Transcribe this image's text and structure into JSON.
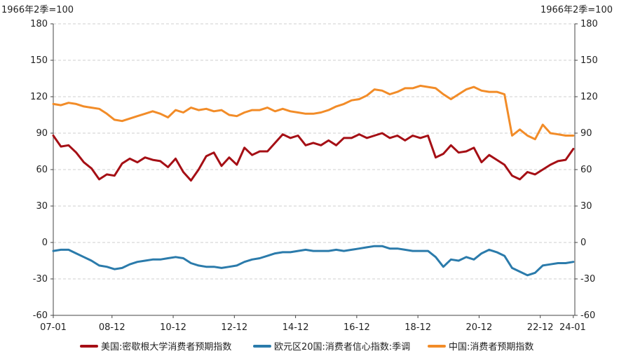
{
  "chart_data": {
    "type": "line",
    "left_axis_unit": "1966年2季=100",
    "right_axis_unit": "1966年2季=100",
    "yticks": [
      "180",
      "150",
      "120",
      "90",
      "60",
      "30",
      "0",
      "-30",
      "-60"
    ],
    "ylim": [
      -60,
      180
    ],
    "xlim": [
      2007.0,
      2024.05
    ],
    "x_ticks": [
      {
        "label": "07-01",
        "x": 2007.0
      },
      {
        "label": "08-12",
        "x": 2008.92
      },
      {
        "label": "10-12",
        "x": 2010.92
      },
      {
        "label": "12-12",
        "x": 2012.92
      },
      {
        "label": "14-12",
        "x": 2014.92
      },
      {
        "label": "16-12",
        "x": 2016.92
      },
      {
        "label": "18-12",
        "x": 2018.92
      },
      {
        "label": "20-12",
        "x": 2020.92
      },
      {
        "label": "22-12",
        "x": 2022.92
      },
      {
        "label": "24-01",
        "x": 2024.0
      }
    ],
    "grid": "horizontal dashed",
    "legend_position": "bottom",
    "series": [
      {
        "name": "美国:密歇根大学消费者预期指数",
        "color": "#a50f15",
        "x": [
          2007.0,
          2007.25,
          2007.5,
          2007.75,
          2008.0,
          2008.25,
          2008.5,
          2008.75,
          2009.0,
          2009.25,
          2009.5,
          2009.75,
          2010.0,
          2010.25,
          2010.5,
          2010.75,
          2011.0,
          2011.25,
          2011.5,
          2011.75,
          2012.0,
          2012.25,
          2012.5,
          2012.75,
          2013.0,
          2013.25,
          2013.5,
          2013.75,
          2014.0,
          2014.25,
          2014.5,
          2014.75,
          2015.0,
          2015.25,
          2015.5,
          2015.75,
          2016.0,
          2016.25,
          2016.5,
          2016.75,
          2017.0,
          2017.25,
          2017.5,
          2017.75,
          2018.0,
          2018.25,
          2018.5,
          2018.75,
          2019.0,
          2019.25,
          2019.5,
          2019.75,
          2020.0,
          2020.25,
          2020.5,
          2020.75,
          2021.0,
          2021.25,
          2021.5,
          2021.75,
          2022.0,
          2022.25,
          2022.5,
          2022.75,
          2023.0,
          2023.25,
          2023.5,
          2023.75,
          2024.0
        ],
        "values": [
          88,
          79,
          80,
          74,
          66,
          61,
          52,
          56,
          55,
          65,
          69,
          66,
          70,
          68,
          67,
          62,
          69,
          58,
          51,
          60,
          71,
          74,
          63,
          70,
          64,
          78,
          72,
          75,
          75,
          82,
          89,
          86,
          88,
          80,
          82,
          80,
          84,
          80,
          86,
          86,
          89,
          86,
          88,
          90,
          86,
          88,
          84,
          88,
          86,
          88,
          70,
          73,
          80,
          74,
          75,
          78,
          66,
          72,
          68,
          64,
          55,
          52,
          58,
          56,
          60,
          64,
          67,
          68,
          77
        ]
      },
      {
        "name": "欧元区20国:消费者信心指数:季调",
        "color": "#2b7bab",
        "x": [
          2007.0,
          2007.25,
          2007.5,
          2007.75,
          2008.0,
          2008.25,
          2008.5,
          2008.75,
          2009.0,
          2009.25,
          2009.5,
          2009.75,
          2010.0,
          2010.25,
          2010.5,
          2010.75,
          2011.0,
          2011.25,
          2011.5,
          2011.75,
          2012.0,
          2012.25,
          2012.5,
          2012.75,
          2013.0,
          2013.25,
          2013.5,
          2013.75,
          2014.0,
          2014.25,
          2014.5,
          2014.75,
          2015.0,
          2015.25,
          2015.5,
          2015.75,
          2016.0,
          2016.25,
          2016.5,
          2016.75,
          2017.0,
          2017.25,
          2017.5,
          2017.75,
          2018.0,
          2018.25,
          2018.5,
          2018.75,
          2019.0,
          2019.25,
          2019.5,
          2019.75,
          2020.0,
          2020.25,
          2020.5,
          2020.75,
          2021.0,
          2021.25,
          2021.5,
          2021.75,
          2022.0,
          2022.25,
          2022.5,
          2022.75,
          2023.0,
          2023.25,
          2023.5,
          2023.75,
          2024.0
        ],
        "values": [
          -7,
          -6,
          -6,
          -9,
          -12,
          -15,
          -19,
          -20,
          -22,
          -21,
          -18,
          -16,
          -15,
          -14,
          -14,
          -13,
          -12,
          -13,
          -17,
          -19,
          -20,
          -20,
          -21,
          -20,
          -19,
          -16,
          -14,
          -13,
          -11,
          -9,
          -8,
          -8,
          -7,
          -6,
          -7,
          -7,
          -7,
          -6,
          -7,
          -6,
          -5,
          -4,
          -3,
          -3,
          -5,
          -5,
          -6,
          -7,
          -7,
          -7,
          -12,
          -20,
          -14,
          -15,
          -12,
          -14,
          -9,
          -6,
          -8,
          -11,
          -21,
          -24,
          -27,
          -25,
          -19,
          -18,
          -17,
          -17,
          -16
        ]
      },
      {
        "name": "中国:消费者预期指数",
        "color": "#f28c28",
        "x": [
          2007.0,
          2007.25,
          2007.5,
          2007.75,
          2008.0,
          2008.25,
          2008.5,
          2008.75,
          2009.0,
          2009.25,
          2009.5,
          2009.75,
          2010.0,
          2010.25,
          2010.5,
          2010.75,
          2011.0,
          2011.25,
          2011.5,
          2011.75,
          2012.0,
          2012.25,
          2012.5,
          2012.75,
          2013.0,
          2013.25,
          2013.5,
          2013.75,
          2014.0,
          2014.25,
          2014.5,
          2014.75,
          2015.0,
          2015.25,
          2015.5,
          2015.75,
          2016.0,
          2016.25,
          2016.5,
          2016.75,
          2017.0,
          2017.25,
          2017.5,
          2017.75,
          2018.0,
          2018.25,
          2018.5,
          2018.75,
          2019.0,
          2019.25,
          2019.5,
          2019.75,
          2020.0,
          2020.25,
          2020.5,
          2020.75,
          2021.0,
          2021.25,
          2021.5,
          2021.75,
          2022.0,
          2022.25,
          2022.5,
          2022.75,
          2023.0,
          2023.25,
          2023.5,
          2023.75,
          2024.0
        ],
        "values": [
          114,
          113,
          115,
          114,
          112,
          111,
          110,
          106,
          101,
          100,
          102,
          104,
          106,
          108,
          106,
          103,
          109,
          107,
          111,
          109,
          110,
          108,
          109,
          105,
          104,
          107,
          109,
          109,
          111,
          108,
          110,
          108,
          107,
          106,
          106,
          107,
          109,
          112,
          114,
          117,
          118,
          121,
          126,
          125,
          122,
          124,
          127,
          127,
          129,
          128,
          127,
          122,
          118,
          122,
          126,
          128,
          125,
          124,
          124,
          122,
          88,
          93,
          88,
          85,
          97,
          90,
          89,
          88,
          88
        ]
      }
    ]
  }
}
